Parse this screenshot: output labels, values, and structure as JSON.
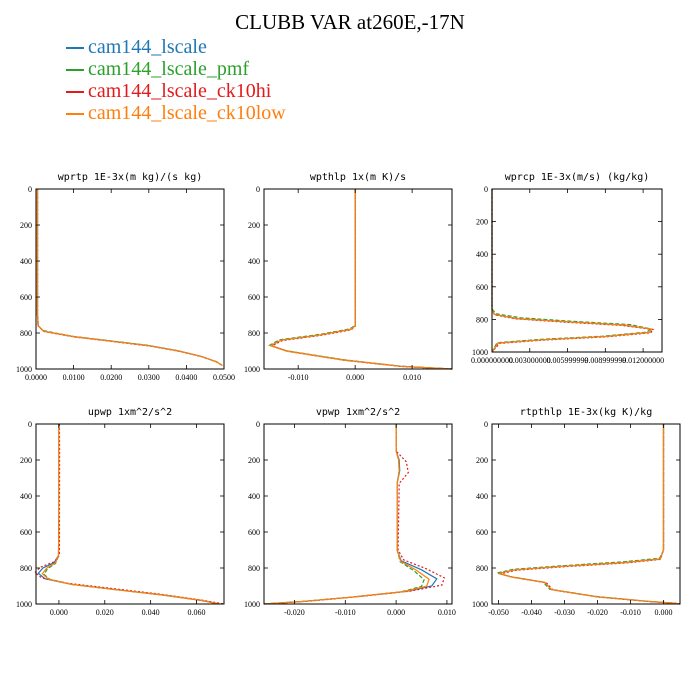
{
  "figure_title": "CLUBB VAR at260E,-17N",
  "legend": [
    {
      "label": "cam144_lscale",
      "color": "#1f77b4"
    },
    {
      "label": "cam144_lscale_pmf",
      "color": "#2ca02c"
    },
    {
      "label": "cam144_lscale_ck10hi",
      "color": "#e31a1c"
    },
    {
      "label": "cam144_lscale_ck10low",
      "color": "#ff7f0e"
    }
  ],
  "chart_data": [
    {
      "type": "line",
      "title": "wprtp  1E-3x(m kg)/(s kg)",
      "xlim": [
        0,
        0.05
      ],
      "ylim": [
        1000,
        0
      ],
      "xticks": [
        0,
        0.01,
        0.02,
        0.03,
        0.04,
        0.05
      ],
      "xtick_labels": [
        "0.0000",
        "0.0100",
        "0.0200",
        "0.0300",
        "0.0400",
        "0.0500"
      ],
      "yticks": [
        0,
        200,
        400,
        600,
        800,
        1000
      ],
      "ytick_labels": [
        "0",
        "200",
        "400",
        "600",
        "800",
        "1000"
      ],
      "series": [
        {
          "name": "cam144_lscale",
          "x": [
            0.0004,
            0.0004,
            0.0004,
            0.0006,
            0.002,
            0.01,
            0.02,
            0.03,
            0.038,
            0.044,
            0.048,
            0.0495
          ],
          "y": [
            0,
            400,
            700,
            760,
            790,
            820,
            845,
            870,
            900,
            930,
            960,
            980
          ]
        },
        {
          "name": "cam144_lscale_pmf",
          "x": [
            0.0004,
            0.0004,
            0.0004,
            0.0005,
            0.0018,
            0.0095,
            0.0195,
            0.0295,
            0.0375,
            0.0435,
            0.0478,
            0.0494
          ],
          "y": [
            0,
            400,
            700,
            758,
            786,
            818,
            843,
            868,
            898,
            928,
            958,
            978
          ]
        },
        {
          "name": "cam144_lscale_ck10hi",
          "x": [
            0.0004,
            0.0004,
            0.0004,
            0.0006,
            0.0022,
            0.0102,
            0.0202,
            0.0302,
            0.0382,
            0.0442,
            0.0482,
            0.0497
          ],
          "y": [
            0,
            400,
            700,
            762,
            792,
            822,
            847,
            872,
            902,
            932,
            962,
            982
          ]
        },
        {
          "name": "cam144_lscale_ck10low",
          "x": [
            0.0004,
            0.0004,
            0.0004,
            0.0006,
            0.002,
            0.0101,
            0.0201,
            0.0301,
            0.0381,
            0.0441,
            0.0481,
            0.0496
          ],
          "y": [
            0,
            400,
            700,
            760,
            790,
            820,
            846,
            871,
            901,
            931,
            961,
            981
          ]
        }
      ]
    },
    {
      "type": "line",
      "title": "wpthlp  1x(m K)/s",
      "xlim": [
        -0.016,
        0.017
      ],
      "ylim": [
        1000,
        0
      ],
      "xticks": [
        -0.01,
        0,
        0.01
      ],
      "xtick_labels": [
        "-0.010",
        "0.000",
        "0.010"
      ],
      "yticks": [
        0,
        200,
        400,
        600,
        800,
        1000
      ],
      "ytick_labels": [
        "0",
        "200",
        "400",
        "600",
        "800",
        "1000"
      ],
      "series": [
        {
          "name": "cam144_lscale",
          "x": [
            0,
            0,
            0,
            -0.0008,
            -0.006,
            -0.013,
            -0.0148,
            -0.012,
            -0.002,
            0.008,
            0.017
          ],
          "y": [
            0,
            500,
            760,
            780,
            810,
            840,
            870,
            900,
            950,
            985,
            1000
          ]
        },
        {
          "name": "cam144_lscale_pmf",
          "x": [
            0,
            0,
            0,
            -0.0009,
            -0.0062,
            -0.0133,
            -0.015,
            -0.0122,
            -0.0022,
            0.0078,
            0.017
          ],
          "y": [
            0,
            500,
            757,
            777,
            808,
            838,
            868,
            898,
            948,
            984,
            1000
          ]
        },
        {
          "name": "cam144_lscale_ck10hi",
          "x": [
            0,
            0,
            0,
            -0.0007,
            -0.0058,
            -0.0128,
            -0.0146,
            -0.0118,
            -0.0018,
            0.0082,
            0.017
          ],
          "y": [
            0,
            500,
            762,
            782,
            812,
            842,
            872,
            902,
            952,
            986,
            1000
          ]
        },
        {
          "name": "cam144_lscale_ck10low",
          "x": [
            0,
            0,
            0,
            -0.0008,
            -0.006,
            -0.013,
            -0.0149,
            -0.0121,
            -0.0021,
            0.008,
            0.017
          ],
          "y": [
            0,
            500,
            760,
            780,
            810,
            840,
            870,
            900,
            950,
            985,
            1000
          ]
        }
      ]
    },
    {
      "type": "line",
      "title": "wprcp  1E-3x(m/s) (kg/kg)",
      "xlim": [
        0,
        0.0135
      ],
      "ylim": [
        1000,
        0
      ],
      "xticks": [
        0,
        0.003,
        0.006,
        0.009,
        0.012
      ],
      "xtick_labels": [
        "0.000000000",
        "0.003000000",
        "0.005999999",
        "0.008999999",
        "0.012000000"
      ],
      "yticks": [
        0,
        200,
        400,
        600,
        800,
        1000
      ],
      "ytick_labels": [
        "0",
        "200",
        "400",
        "600",
        "800",
        "1000"
      ],
      "series": [
        {
          "name": "cam144_lscale",
          "x": [
            0,
            0,
            0.0002,
            0.002,
            0.006,
            0.0105,
            0.0127,
            0.0125,
            0.009,
            0.004,
            0.0005,
            0
          ],
          "y": [
            0,
            740,
            770,
            795,
            815,
            835,
            860,
            880,
            905,
            925,
            945,
            1000
          ]
        },
        {
          "name": "cam144_lscale_pmf",
          "x": [
            0,
            0,
            0.0003,
            0.0023,
            0.0065,
            0.011,
            0.0126,
            0.0123,
            0.0088,
            0.0038,
            0.0004,
            0
          ],
          "y": [
            0,
            735,
            765,
            790,
            812,
            832,
            858,
            878,
            903,
            923,
            943,
            1000
          ]
        },
        {
          "name": "cam144_lscale_ck10hi",
          "x": [
            0,
            0,
            0.0002,
            0.0019,
            0.0058,
            0.0103,
            0.0128,
            0.0126,
            0.0091,
            0.0041,
            0.0006,
            0
          ],
          "y": [
            0,
            742,
            772,
            797,
            817,
            837,
            862,
            882,
            907,
            927,
            947,
            1000
          ]
        },
        {
          "name": "cam144_lscale_ck10low",
          "x": [
            0,
            0,
            0.0002,
            0.002,
            0.006,
            0.0106,
            0.0127,
            0.0125,
            0.009,
            0.004,
            0.0005,
            0
          ],
          "y": [
            0,
            740,
            770,
            795,
            815,
            835,
            860,
            880,
            905,
            925,
            945,
            1000
          ]
        }
      ]
    },
    {
      "type": "line",
      "title": "upwp  1xm^2/s^2",
      "xlim": [
        -0.01,
        0.072
      ],
      "ylim": [
        1000,
        0
      ],
      "xticks": [
        0,
        0.02,
        0.04,
        0.06
      ],
      "xtick_labels": [
        "0.000",
        "0.020",
        "0.040",
        "0.060"
      ],
      "yticks": [
        0,
        200,
        400,
        600,
        800,
        1000
      ],
      "ytick_labels": [
        "0",
        "200",
        "400",
        "600",
        "800",
        "1000"
      ],
      "series": [
        {
          "name": "cam144_lscale",
          "x": [
            0,
            0,
            -0.0002,
            -0.002,
            -0.007,
            -0.009,
            -0.006,
            0.005,
            0.025,
            0.045,
            0.062,
            0.07
          ],
          "y": [
            0,
            500,
            730,
            770,
            800,
            830,
            860,
            890,
            920,
            950,
            980,
            1000
          ]
        },
        {
          "name": "cam144_lscale_pmf",
          "x": [
            0,
            0,
            -0.0002,
            -0.0015,
            -0.005,
            -0.0065,
            -0.004,
            0.006,
            0.026,
            0.046,
            0.062,
            0.07
          ],
          "y": [
            0,
            500,
            735,
            775,
            805,
            835,
            863,
            892,
            922,
            951,
            980,
            1000
          ]
        },
        {
          "name": "cam144_lscale_ck10hi",
          "x": [
            0.0002,
            0.0003,
            0.0002,
            -0.002,
            -0.008,
            -0.0105,
            -0.0075,
            0.004,
            0.024,
            0.044,
            0.062,
            0.072
          ],
          "y": [
            0,
            150,
            730,
            765,
            795,
            825,
            855,
            885,
            915,
            945,
            978,
            1000
          ]
        },
        {
          "name": "cam144_lscale_ck10low",
          "x": [
            0,
            0,
            -0.0002,
            -0.0016,
            -0.0055,
            -0.0072,
            -0.0045,
            0.0055,
            0.0255,
            0.0455,
            0.062,
            0.07
          ],
          "y": [
            0,
            500,
            732,
            772,
            802,
            832,
            862,
            891,
            921,
            950,
            980,
            1000
          ]
        }
      ]
    },
    {
      "type": "line",
      "title": "vpwp  1xm^2/s^2",
      "xlim": [
        -0.026,
        0.011
      ],
      "ylim": [
        1000,
        0
      ],
      "xticks": [
        -0.02,
        -0.01,
        0,
        0.01
      ],
      "xtick_labels": [
        "-0.020",
        "-0.010",
        "0.000",
        "0.010"
      ],
      "yticks": [
        0,
        200,
        400,
        600,
        800,
        1000
      ],
      "ytick_labels": [
        "0",
        "200",
        "400",
        "600",
        "800",
        "1000"
      ],
      "series": [
        {
          "name": "cam144_lscale",
          "x": [
            0,
            0,
            0.0006,
            0.0007,
            0.0002,
            0.0002,
            0.001,
            0.005,
            0.008,
            0.007,
            0.002,
            -0.008,
            -0.018,
            -0.026
          ],
          "y": [
            0,
            150,
            200,
            260,
            330,
            700,
            760,
            810,
            860,
            900,
            930,
            960,
            985,
            1000
          ]
        },
        {
          "name": "cam144_lscale_pmf",
          "x": [
            0,
            0,
            0.0005,
            0.0006,
            0.0002,
            0.0002,
            0.0008,
            0.0035,
            0.0055,
            0.005,
            0.001,
            -0.009,
            -0.0185,
            -0.026
          ],
          "y": [
            0,
            150,
            200,
            260,
            330,
            700,
            765,
            815,
            865,
            902,
            932,
            962,
            986,
            1000
          ]
        },
        {
          "name": "cam144_lscale_ck10hi",
          "x": [
            0,
            0,
            0.002,
            0.0024,
            0.0006,
            0.0004,
            0.0015,
            0.006,
            0.0095,
            0.009,
            0.003,
            -0.007,
            -0.017,
            -0.026
          ],
          "y": [
            0,
            150,
            210,
            270,
            330,
            700,
            755,
            805,
            855,
            895,
            928,
            958,
            984,
            1000
          ]
        },
        {
          "name": "cam144_lscale_ck10low",
          "x": [
            0,
            0,
            0.0005,
            0.0006,
            0.0002,
            0.0002,
            0.0009,
            0.004,
            0.0065,
            0.006,
            0.0015,
            -0.0085,
            -0.018,
            -0.026
          ],
          "y": [
            0,
            150,
            200,
            260,
            330,
            700,
            762,
            812,
            862,
            901,
            931,
            961,
            985,
            1000
          ]
        }
      ]
    },
    {
      "type": "line",
      "title": "rtpthlp  1E-3x(kg K)/kg",
      "xlim": [
        -0.052,
        0.005
      ],
      "ylim": [
        1000,
        0
      ],
      "xticks": [
        -0.05,
        -0.04,
        -0.03,
        -0.02,
        -0.01,
        0
      ],
      "xtick_labels": [
        "-0.050",
        "-0.040",
        "-0.030",
        "-0.020",
        "-0.010",
        "0.000"
      ],
      "yticks": [
        0,
        200,
        400,
        600,
        800,
        1000
      ],
      "ytick_labels": [
        "0",
        "200",
        "400",
        "600",
        "800",
        "1000"
      ],
      "series": [
        {
          "name": "cam144_lscale",
          "x": [
            0,
            0,
            -0.001,
            -0.012,
            -0.03,
            -0.045,
            -0.05,
            -0.046,
            -0.036,
            -0.034,
            -0.02,
            -0.005,
            0.003,
            0.005
          ],
          "y": [
            0,
            700,
            750,
            770,
            790,
            810,
            830,
            850,
            880,
            920,
            960,
            985,
            995,
            1000
          ]
        },
        {
          "name": "cam144_lscale_pmf",
          "x": [
            0,
            0,
            -0.0012,
            -0.0125,
            -0.0305,
            -0.0455,
            -0.0505,
            -0.0465,
            -0.0365,
            -0.0345,
            -0.0205,
            -0.0055,
            0.0028,
            0.005
          ],
          "y": [
            0,
            700,
            746,
            766,
            787,
            807,
            828,
            848,
            878,
            918,
            958,
            984,
            995,
            1000
          ]
        },
        {
          "name": "cam144_lscale_ck10hi",
          "x": [
            0,
            0,
            -0.0009,
            -0.0115,
            -0.0295,
            -0.0445,
            -0.0495,
            -0.0455,
            -0.0355,
            -0.0335,
            -0.0195,
            -0.0045,
            0.0032,
            0.005
          ],
          "y": [
            0,
            700,
            752,
            772,
            792,
            812,
            832,
            852,
            882,
            922,
            962,
            986,
            995,
            1000
          ]
        },
        {
          "name": "cam144_lscale_ck10low",
          "x": [
            0,
            0,
            -0.001,
            -0.012,
            -0.03,
            -0.045,
            -0.05,
            -0.046,
            -0.036,
            -0.034,
            -0.02,
            -0.005,
            0.003,
            0.005
          ],
          "y": [
            0,
            700,
            750,
            770,
            790,
            810,
            830,
            850,
            880,
            920,
            960,
            985,
            995,
            1000
          ]
        }
      ]
    }
  ]
}
